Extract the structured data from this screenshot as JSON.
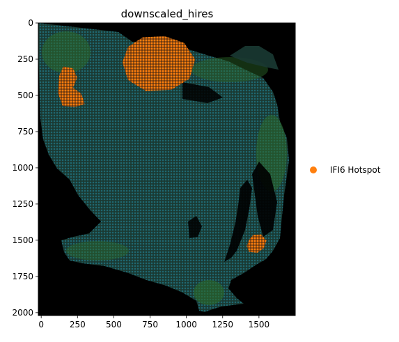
{
  "chart_data": {
    "type": "scatter",
    "title": "downscaled_hires",
    "xlabel": "",
    "ylabel": "",
    "xlim": [
      -20,
      1750
    ],
    "ylim": [
      2020,
      0
    ],
    "y_inverted": true,
    "x_ticks": [
      0,
      250,
      500,
      750,
      1000,
      1250,
      1500
    ],
    "y_ticks": [
      0,
      250,
      500,
      750,
      1000,
      1250,
      1500,
      1750,
      2000
    ],
    "grid": false,
    "background_image": "black tissue image with green-tinted tissue spots",
    "legend": {
      "placement": "right",
      "entries": [
        {
          "label": "IFI6 Hotspot",
          "color": "#ff7f0e"
        }
      ]
    },
    "series": [
      {
        "name": "IFI6 Hotspot",
        "color": "#ff7f0e",
        "regions": [
          {
            "center": [
              810,
              280
            ],
            "radius": [
              250,
              190
            ]
          },
          {
            "center": [
              205,
              440
            ],
            "radius": [
              95,
              140
            ]
          },
          {
            "center": [
              1485,
              1525
            ],
            "radius": [
              70,
              65
            ]
          }
        ]
      }
    ]
  }
}
